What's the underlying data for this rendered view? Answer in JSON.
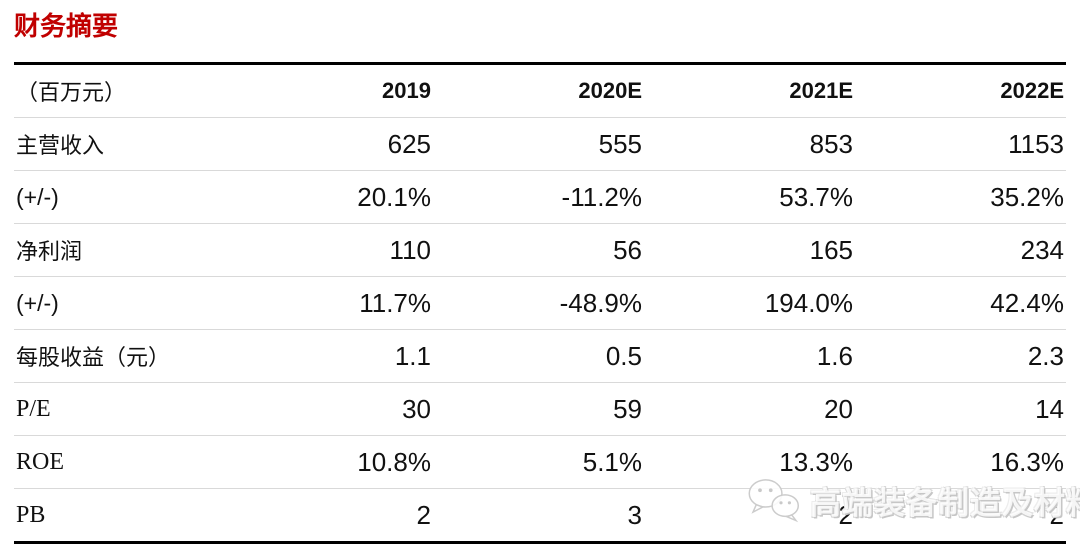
{
  "page": {
    "title": "财务摘要"
  },
  "table": {
    "unit_header": "（百万元）",
    "columns": [
      "2019",
      "2020E",
      "2021E",
      "2022E"
    ],
    "rows": [
      {
        "label": "主营收入",
        "values": [
          "625",
          "555",
          "853",
          "1153"
        ]
      },
      {
        "label": "(+/-)",
        "values": [
          "20.1%",
          "-11.2%",
          "53.7%",
          "35.2%"
        ]
      },
      {
        "label": "净利润",
        "values": [
          "110",
          "56",
          "165",
          "234"
        ]
      },
      {
        "label": "(+/-)",
        "values": [
          "11.7%",
          "-48.9%",
          "194.0%",
          "42.4%"
        ]
      },
      {
        "label": "每股收益（元）",
        "values": [
          "1.1",
          "0.5",
          "1.6",
          "2.3"
        ]
      },
      {
        "label": "P/E",
        "values": [
          "30",
          "59",
          "20",
          "14"
        ]
      },
      {
        "label": "ROE",
        "values": [
          "10.8%",
          "5.1%",
          "13.3%",
          "16.3%"
        ]
      },
      {
        "label": "PB",
        "values": [
          "2",
          "3",
          "2",
          "2"
        ]
      }
    ]
  },
  "watermark": {
    "text": "高端装备制造及材料",
    "icon": "wechat-logo-icon"
  },
  "colors": {
    "title_red": "#c00000",
    "heavy_rule": "#000000",
    "light_rule": "#d9d9d9",
    "text": "#111111",
    "watermark_gray": "#c6c6c6"
  }
}
